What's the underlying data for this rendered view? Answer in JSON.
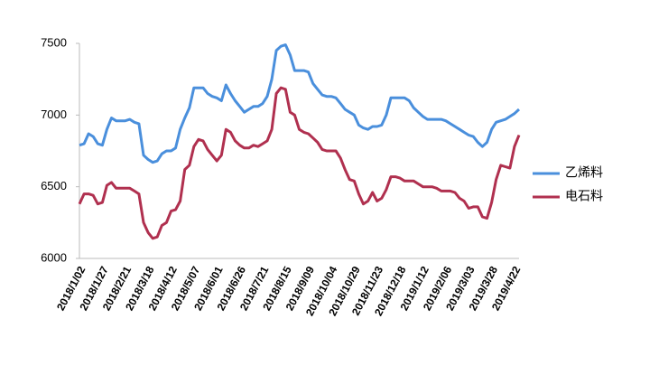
{
  "chart_data": {
    "type": "line",
    "categories": [
      "2018/1/02",
      null,
      null,
      null,
      null,
      "2018/1/27",
      null,
      null,
      null,
      null,
      "2018/2/21",
      null,
      null,
      null,
      null,
      "2018/3/18",
      null,
      null,
      null,
      null,
      "2018/4/12",
      null,
      null,
      null,
      null,
      "2018/5/07",
      null,
      null,
      null,
      null,
      "2018/6/01",
      null,
      null,
      null,
      null,
      "2018/6/26",
      null,
      null,
      null,
      null,
      "2018/7/21",
      null,
      null,
      null,
      null,
      "2018/8/15",
      null,
      null,
      null,
      null,
      "2018/9/09",
      null,
      null,
      null,
      null,
      "2018/10/04",
      null,
      null,
      null,
      null,
      "2018/10/29",
      null,
      null,
      null,
      null,
      "2018/11/23",
      null,
      null,
      null,
      null,
      "2018/12/18",
      null,
      null,
      null,
      null,
      "2019/1/12",
      null,
      null,
      null,
      null,
      "2019/2/06",
      null,
      null,
      null,
      null,
      "2019/3/03",
      null,
      null,
      null,
      null,
      "2019/3/28",
      null,
      null,
      null,
      null,
      "2019/4/22",
      null
    ],
    "series": [
      {
        "name": "乙烯料",
        "color": "#4a8fdc",
        "values": [
          6790,
          6800,
          6870,
          6850,
          6800,
          6790,
          6900,
          6980,
          6960,
          6960,
          6960,
          6970,
          6950,
          6940,
          6720,
          6690,
          6670,
          6680,
          6730,
          6750,
          6750,
          6770,
          6900,
          6980,
          7050,
          7190,
          7190,
          7190,
          7150,
          7130,
          7120,
          7100,
          7210,
          7150,
          7100,
          7060,
          7020,
          7040,
          7060,
          7060,
          7080,
          7130,
          7250,
          7450,
          7480,
          7490,
          7420,
          7310,
          7310,
          7310,
          7300,
          7220,
          7180,
          7140,
          7130,
          7130,
          7120,
          7080,
          7040,
          7020,
          7000,
          6930,
          6910,
          6900,
          6920,
          6920,
          6930,
          7000,
          7120,
          7120,
          7120,
          7120,
          7100,
          7050,
          7020,
          6990,
          6970,
          6970,
          6970,
          6970,
          6960,
          6940,
          6920,
          6900,
          6880,
          6860,
          6850,
          6810,
          6780,
          6810,
          6900,
          6950,
          6960,
          6970,
          6990,
          7010,
          7040
        ]
      },
      {
        "name": "电石料",
        "color": "#b0304f",
        "values": [
          6380,
          6450,
          6450,
          6440,
          6380,
          6390,
          6510,
          6530,
          6490,
          6490,
          6490,
          6490,
          6470,
          6450,
          6250,
          6180,
          6140,
          6150,
          6230,
          6250,
          6330,
          6340,
          6400,
          6620,
          6650,
          6780,
          6830,
          6820,
          6760,
          6720,
          6680,
          6720,
          6900,
          6880,
          6820,
          6790,
          6770,
          6770,
          6790,
          6780,
          6800,
          6820,
          6900,
          7150,
          7190,
          7180,
          7020,
          7000,
          6900,
          6880,
          6870,
          6840,
          6810,
          6760,
          6750,
          6750,
          6750,
          6700,
          6620,
          6550,
          6540,
          6450,
          6380,
          6400,
          6460,
          6400,
          6420,
          6480,
          6570,
          6570,
          6560,
          6540,
          6540,
          6540,
          6520,
          6500,
          6500,
          6500,
          6490,
          6470,
          6470,
          6470,
          6460,
          6420,
          6400,
          6350,
          6360,
          6360,
          6290,
          6280,
          6390,
          6550,
          6650,
          6640,
          6630,
          6780,
          6860
        ]
      }
    ],
    "ylim": [
      6000,
      7500
    ],
    "yticks": [
      6000,
      6500,
      7000,
      7500
    ],
    "grid": false,
    "legend": "right"
  }
}
